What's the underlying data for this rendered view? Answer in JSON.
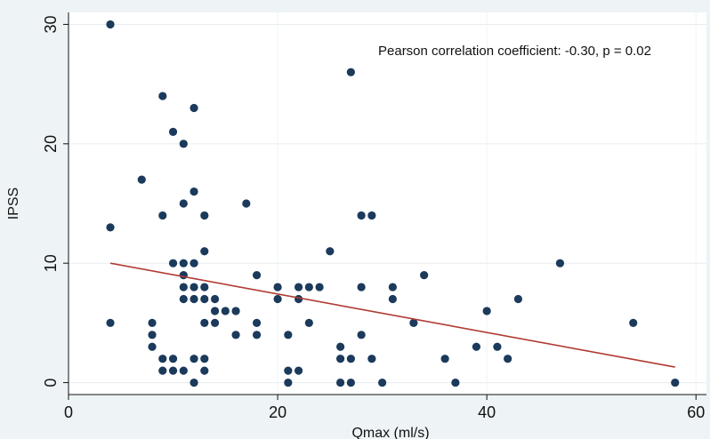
{
  "chart_data": {
    "type": "scatter",
    "xlabel": "Qmax (ml/s)",
    "ylabel": "IPSS",
    "xlim": [
      0,
      61
    ],
    "ylim": [
      -1,
      31
    ],
    "xticks": [
      0,
      20,
      40,
      60
    ],
    "yticks": [
      0,
      10,
      20,
      30
    ],
    "annotation": "Pearson correlation coefficient: -0.30, p = 0.02",
    "grid": true,
    "colors": {
      "points": "#1b3a5c",
      "fit": "#b03a32",
      "plot_bg": "#ffffff",
      "page_bg": "#eef3f6"
    },
    "series": [
      {
        "points": [
          [
            4,
            30
          ],
          [
            4,
            13
          ],
          [
            4,
            5
          ],
          [
            7,
            17
          ],
          [
            8,
            5
          ],
          [
            8,
            4
          ],
          [
            8,
            3
          ],
          [
            9,
            24
          ],
          [
            9,
            14
          ],
          [
            9,
            2
          ],
          [
            9,
            1
          ],
          [
            10,
            21
          ],
          [
            10,
            10
          ],
          [
            10,
            2
          ],
          [
            10,
            1
          ],
          [
            11,
            20
          ],
          [
            11,
            15
          ],
          [
            11,
            10
          ],
          [
            11,
            9
          ],
          [
            11,
            8
          ],
          [
            11,
            7
          ],
          [
            11,
            1
          ],
          [
            12,
            23
          ],
          [
            12,
            16
          ],
          [
            12,
            10
          ],
          [
            12,
            8
          ],
          [
            12,
            7
          ],
          [
            12,
            2
          ],
          [
            12,
            0
          ],
          [
            13,
            14
          ],
          [
            13,
            11
          ],
          [
            13,
            8
          ],
          [
            13,
            7
          ],
          [
            13,
            5
          ],
          [
            13,
            2
          ],
          [
            13,
            1
          ],
          [
            14,
            7
          ],
          [
            14,
            6
          ],
          [
            14,
            5
          ],
          [
            15,
            6
          ],
          [
            16,
            6
          ],
          [
            16,
            4
          ],
          [
            17,
            15
          ],
          [
            18,
            9
          ],
          [
            18,
            5
          ],
          [
            18,
            4
          ],
          [
            20,
            8
          ],
          [
            20,
            7
          ],
          [
            21,
            4
          ],
          [
            21,
            1
          ],
          [
            21,
            0
          ],
          [
            22,
            8
          ],
          [
            22,
            7
          ],
          [
            22,
            1
          ],
          [
            23,
            8
          ],
          [
            23,
            5
          ],
          [
            24,
            8
          ],
          [
            25,
            11
          ],
          [
            26,
            3
          ],
          [
            26,
            2
          ],
          [
            26,
            0
          ],
          [
            27,
            26
          ],
          [
            27,
            2
          ],
          [
            27,
            0
          ],
          [
            28,
            14
          ],
          [
            28,
            8
          ],
          [
            28,
            4
          ],
          [
            29,
            14
          ],
          [
            29,
            2
          ],
          [
            30,
            0
          ],
          [
            31,
            8
          ],
          [
            31,
            7
          ],
          [
            33,
            5
          ],
          [
            34,
            9
          ],
          [
            36,
            2
          ],
          [
            37,
            0
          ],
          [
            39,
            3
          ],
          [
            40,
            6
          ],
          [
            41,
            3
          ],
          [
            42,
            2
          ],
          [
            43,
            7
          ],
          [
            47,
            10
          ],
          [
            54,
            5
          ],
          [
            58,
            0
          ]
        ]
      }
    ],
    "fit_line": {
      "x": [
        4,
        58
      ],
      "y": [
        10.0,
        1.3
      ]
    }
  }
}
